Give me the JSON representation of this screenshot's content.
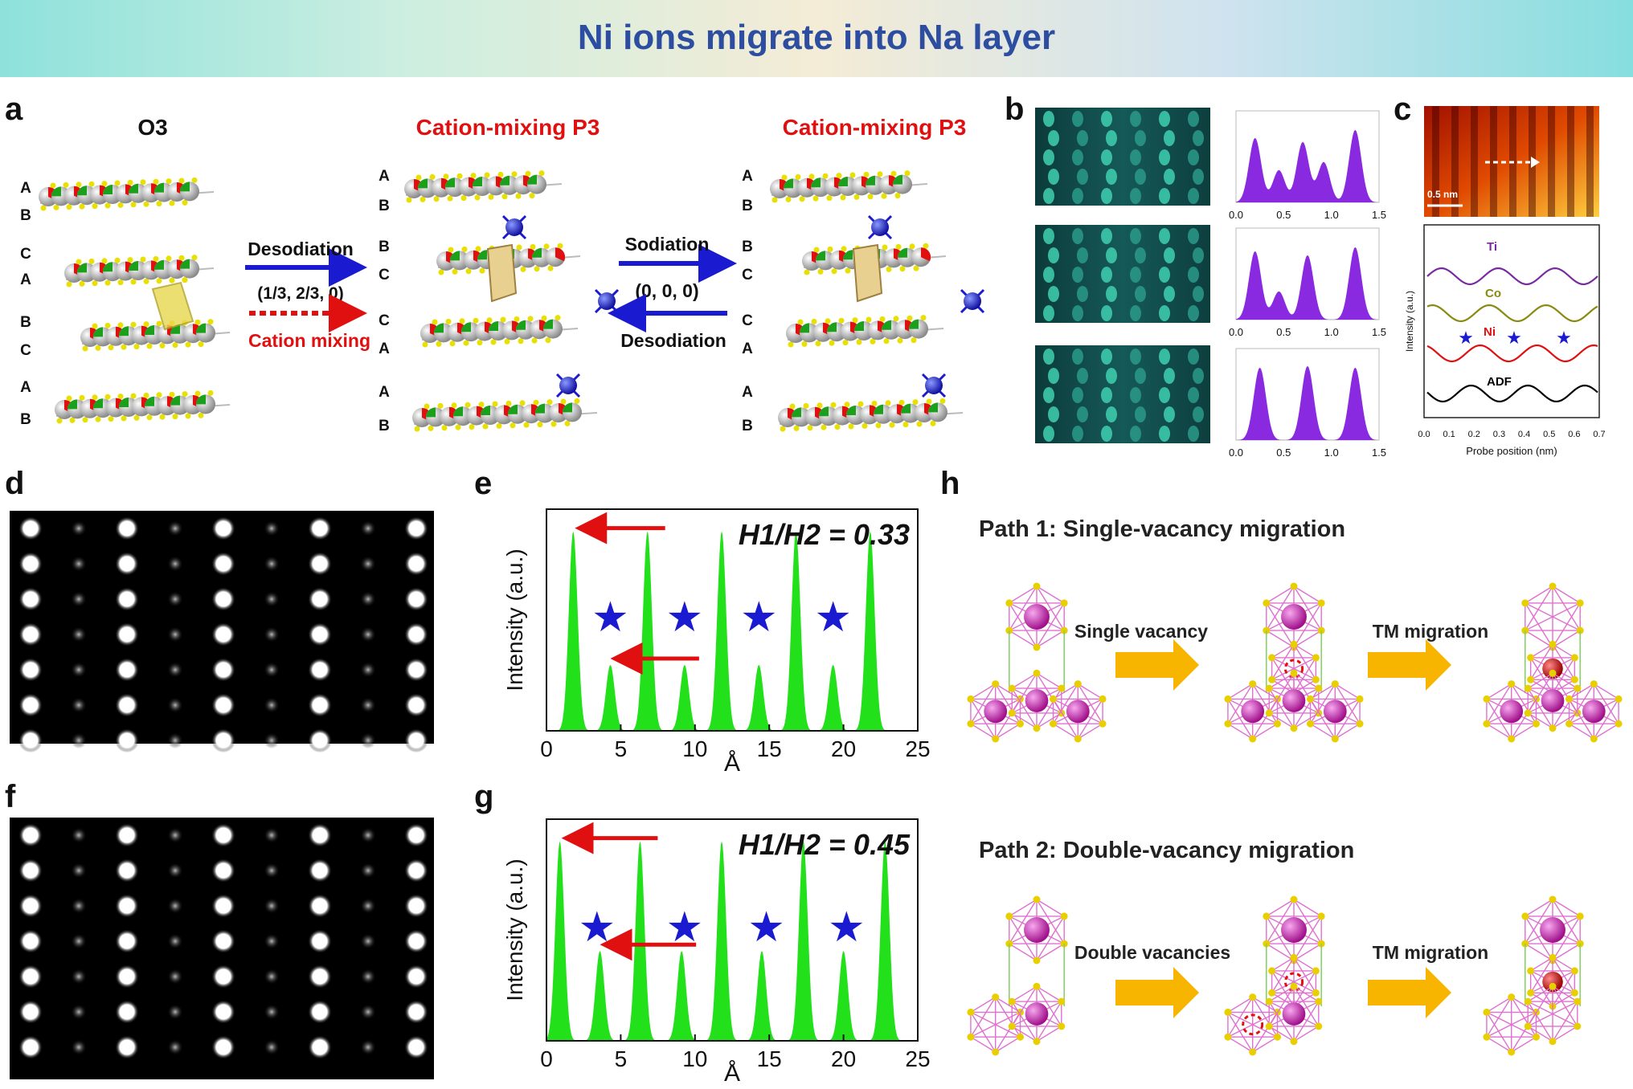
{
  "title": "Ni ions migrate into Na layer",
  "panel_labels": {
    "a": "a",
    "b": "b",
    "c": "c",
    "d": "d",
    "e": "e",
    "f": "f",
    "g": "g",
    "h": "h"
  },
  "panel_a": {
    "titles": [
      "O3",
      "Cation-mixing P3",
      "Cation-mixing P3"
    ],
    "layers_o3": [
      "A",
      "B",
      "C",
      "A",
      "B",
      "C",
      "A",
      "B"
    ],
    "layers_p3": [
      "A",
      "B",
      "B",
      "C",
      "C",
      "A",
      "A",
      "B"
    ],
    "arrow1_top": "Desodiation",
    "arrow1_mid": "(1/3, 2/3, 0)",
    "arrow1_bottom": "Cation mixing",
    "arrow2_top": "Sodiation",
    "arrow2_mid": "(0, 0, 0)",
    "arrow2_bottom": "Desodiation",
    "colors": {
      "blue_arrow": "#1a1ad0",
      "red_arrow": "#e01010",
      "title_red": "#e01010"
    }
  },
  "panel_b": {
    "tick_labels": [
      "0.0",
      "0.5",
      "1.0",
      "1.5"
    ]
  },
  "panel_c": {
    "scale_bar": "0.5 nm",
    "series_labels": [
      "Ti",
      "Co",
      "Ni",
      "ADF"
    ],
    "series_colors": [
      "#7a2aa0",
      "#8a8a10",
      "#e01010",
      "#000000"
    ],
    "xlabel": "Probe position (nm)",
    "ylabel": "Intensity (a.u.)",
    "x_ticks": [
      "0.0",
      "0.1",
      "0.2",
      "0.3",
      "0.4",
      "0.5",
      "0.6",
      "0.7"
    ]
  },
  "chart_data": [
    {
      "type": "area",
      "ratio_label": "H1/H2 = 0.33",
      "xlabel": "Å",
      "ylabel": "Intensity (a.u.)",
      "xlim": [
        0,
        25
      ],
      "x_ticks": [
        "0",
        "5",
        "10",
        "15",
        "20",
        "25"
      ],
      "peaks_x": [
        1.8,
        4.3,
        6.8,
        9.3,
        11.8,
        14.3,
        16.8,
        19.3,
        21.8
      ],
      "peaks_h": [
        1.0,
        0.33,
        1.0,
        0.33,
        1.0,
        0.33,
        1.0,
        0.33,
        1.0
      ],
      "star_x": [
        4.3,
        9.3,
        14.3,
        19.3
      ]
    },
    {
      "type": "area",
      "ratio_label": "H1/H2 = 0.45",
      "xlabel": "Å",
      "ylabel": "Intensity (a.u.)",
      "xlim": [
        0,
        25
      ],
      "x_ticks": [
        "0",
        "5",
        "10",
        "15",
        "20",
        "25"
      ],
      "peaks_x": [
        0.9,
        3.6,
        6.3,
        9.1,
        11.8,
        14.5,
        17.3,
        20.0,
        22.8
      ],
      "peaks_h": [
        1.0,
        0.45,
        1.0,
        0.45,
        1.0,
        0.45,
        1.0,
        0.45,
        1.0
      ],
      "star_x": [
        3.4,
        9.3,
        14.8,
        20.2
      ]
    }
  ],
  "panel_h": {
    "path1_title": "Path 1: Single-vacancy migration",
    "path1_step1": "Single vacancy",
    "path1_step2": "TM migration",
    "path2_title": "Path 2: Double-vacancy migration",
    "path2_step1": "Double vacancies",
    "path2_step2": "TM migration"
  }
}
